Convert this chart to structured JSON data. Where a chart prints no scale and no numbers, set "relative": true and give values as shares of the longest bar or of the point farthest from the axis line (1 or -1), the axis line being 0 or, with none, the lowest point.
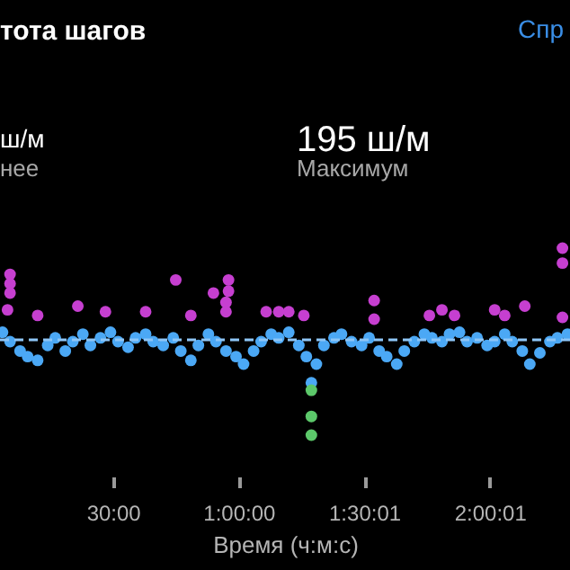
{
  "chart_data": {
    "type": "scatter",
    "title": "тота шагов",
    "xlabel": "Время (ч:м:с)",
    "relative": true,
    "marker": "circle",
    "grid": false,
    "legend": false,
    "annotations": [
      "Спр",
      "ш/м",
      "нее",
      "195 ш/м",
      "Максимум"
    ],
    "xlim": [
      180,
      8352
    ],
    "xticks": [
      {
        "value": 1800,
        "label": "30:00"
      },
      {
        "value": 3600,
        "label": "1:00:00"
      },
      {
        "value": 5401,
        "label": "1:30:01"
      },
      {
        "value": 7201,
        "label": "2:00:01"
      }
    ],
    "ref_lines": [
      {
        "axis": "y",
        "value": 0.51,
        "label": null,
        "color": "#8ec6f7",
        "line_style": "dashed"
      }
    ],
    "series": [
      {
        "color": "#4ba8f5",
        "x": [
          216,
          324,
          468,
          576,
          720,
          864,
          972,
          1116,
          1224,
          1368,
          1476,
          1620,
          1764,
          1872,
          2016,
          2124,
          2268,
          2376,
          2520,
          2664,
          2772,
          2916,
          3024,
          3168,
          3276,
          3420,
          3564,
          3672,
          3816,
          3924,
          4068,
          4176,
          4320,
          4464,
          4572,
          4716,
          4824,
          4968,
          5076,
          5220,
          5364,
          5472,
          5616,
          5724,
          5868,
          5976,
          6120,
          6264,
          6372,
          6516,
          6624,
          6768,
          6876,
          7020,
          7164,
          7272,
          7416,
          7524,
          7668,
          7776,
          7920,
          8064,
          8172,
          8316,
          4644
        ],
        "values": [
          0.55,
          0.5,
          0.45,
          0.42,
          0.4,
          0.48,
          0.52,
          0.45,
          0.5,
          0.54,
          0.48,
          0.52,
          0.55,
          0.5,
          0.47,
          0.52,
          0.54,
          0.5,
          0.48,
          0.52,
          0.45,
          0.4,
          0.48,
          0.54,
          0.5,
          0.45,
          0.42,
          0.38,
          0.45,
          0.5,
          0.54,
          0.52,
          0.55,
          0.48,
          0.42,
          0.38,
          0.48,
          0.52,
          0.54,
          0.5,
          0.48,
          0.52,
          0.45,
          0.42,
          0.38,
          0.45,
          0.5,
          0.54,
          0.52,
          0.5,
          0.54,
          0.55,
          0.5,
          0.52,
          0.48,
          0.5,
          0.54,
          0.5,
          0.45,
          0.38,
          0.44,
          0.5,
          0.52,
          0.54,
          0.28
        ]
      },
      {
        "color": "#c63fd0",
        "x": [
          324,
          324,
          324,
          288,
          1296,
          1692,
          2268,
          2700,
          3240,
          3456,
          3456,
          3420,
          3420,
          3996,
          4176,
          4320,
          4536,
          5544,
          5544,
          6336,
          6696,
          7272,
          7704,
          8244,
          8244,
          8244,
          720,
          2916,
          6516,
          7416
        ],
        "values": [
          0.86,
          0.81,
          0.76,
          0.67,
          0.69,
          0.66,
          0.66,
          0.83,
          0.76,
          0.83,
          0.77,
          0.71,
          0.66,
          0.66,
          0.66,
          0.66,
          0.64,
          0.72,
          0.62,
          0.64,
          0.64,
          0.67,
          0.69,
          1,
          0.92,
          0.63,
          0.64,
          0.64,
          0.67,
          0.64
        ]
      },
      {
        "color": "#5cc86a",
        "x": [
          4644,
          4644,
          4644
        ],
        "values": [
          0.24,
          0.1,
          0
        ]
      }
    ]
  }
}
